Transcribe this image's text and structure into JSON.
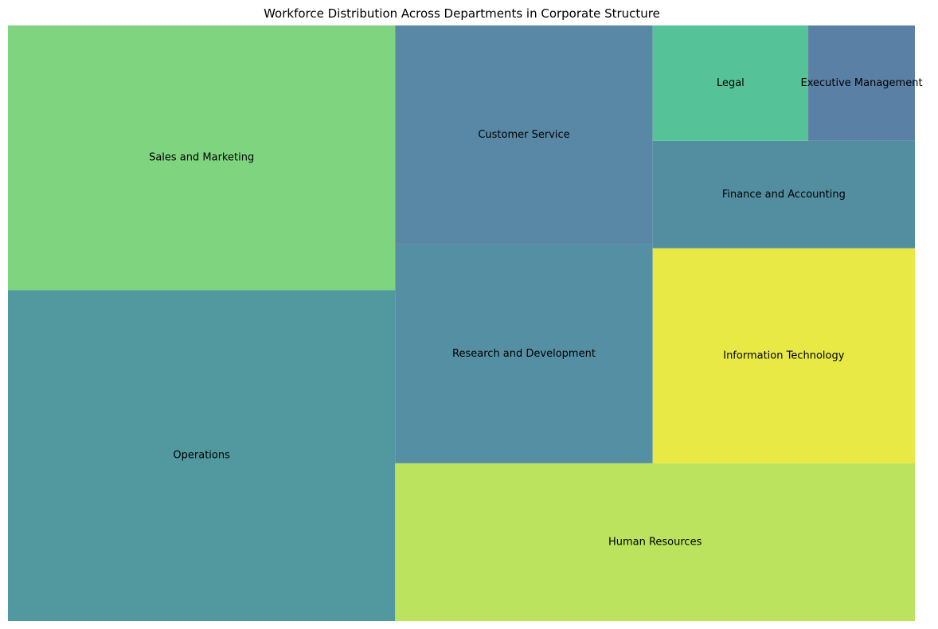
{
  "chart_data": {
    "type": "treemap",
    "title": "Workforce Distribution Across Departments in Corporate Structure",
    "categories": [
      "Operations",
      "Sales and Marketing",
      "Human Resources",
      "Research and Development",
      "Customer Service",
      "Information Technology",
      "Finance and Accounting",
      "Legal",
      "Executive Management"
    ],
    "values": [
      25,
      20,
      16,
      11,
      11,
      11,
      5.5,
      3.5,
      2.4
    ],
    "colors": [
      "#51999f",
      "#7fd47f",
      "#bbe35e",
      "#558fa4",
      "#5888a6",
      "#e9e946",
      "#538ea0",
      "#56c297",
      "#5b80a5"
    ],
    "grid": false,
    "legend": "none"
  }
}
